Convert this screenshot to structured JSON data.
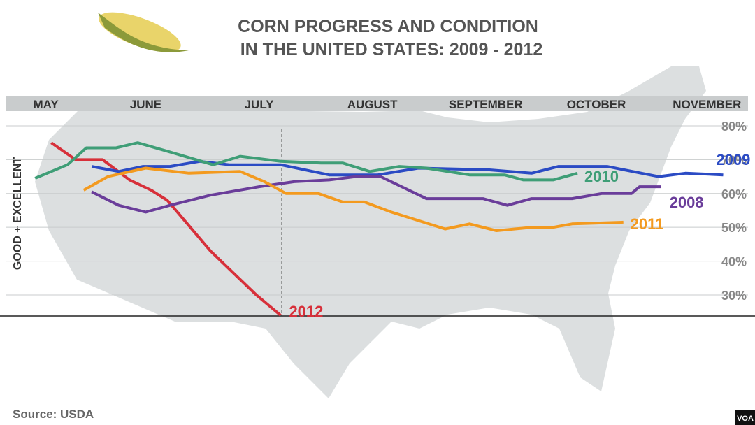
{
  "chart_data": {
    "type": "line",
    "title": "CORN PROGRESS AND CONDITION",
    "subtitle": "IN THE UNITED STATES:  2009 - 2012",
    "y_label": "GOOD + EXCELLENT",
    "source": "Source: USDA",
    "logo": "VOA",
    "xlim": [
      0,
      28
    ],
    "xticks": [
      {
        "value": 1.7,
        "label": "MAY"
      },
      {
        "value": 5.4,
        "label": "JUNE"
      },
      {
        "value": 9.6,
        "label": "JULY"
      },
      {
        "value": 13.8,
        "label": "AUGUST"
      },
      {
        "value": 18,
        "label": "SEPTEMBER"
      },
      {
        "value": 22.1,
        "label": "OCTOBER"
      },
      {
        "value": 26.2,
        "label": "NOVEMBER"
      }
    ],
    "ylim": [
      24,
      83
    ],
    "yticks": [
      {
        "value": 30,
        "label": "30%"
      },
      {
        "value": 40,
        "label": "40%"
      },
      {
        "value": 50,
        "label": "50%"
      },
      {
        "value": 60,
        "label": "60%"
      },
      {
        "value": 70,
        "label": "70%"
      },
      {
        "value": 80,
        "label": "80%"
      }
    ],
    "grid": true,
    "series": [
      {
        "name": "2012",
        "color": "#d7303a",
        "x": [
          1.9,
          2.8,
          3.8,
          4.8,
          5.6,
          6.2,
          7.8,
          9.5,
          10.4
        ],
        "values": [
          75,
          70,
          70,
          64,
          61,
          58,
          43,
          30,
          24
        ]
      },
      {
        "name": "2009",
        "color": "#2b4bc4",
        "x": [
          3.4,
          4.4,
          5.3,
          6.3,
          7.4,
          8.5,
          10.4,
          12.2,
          14,
          15.5,
          18.1,
          19.7,
          20.7,
          22.5,
          24.4,
          25.4,
          26.8
        ],
        "values": [
          68,
          66.5,
          68,
          68,
          69.5,
          68.5,
          68.5,
          65.5,
          65.5,
          67.5,
          67,
          66,
          68,
          68,
          65,
          66,
          65.5
        ]
      },
      {
        "name": "2010",
        "color": "#3f9e77",
        "x": [
          1.3,
          2.5,
          3.2,
          4.3,
          5.1,
          6.2,
          7.9,
          8.9,
          10.4,
          11.9,
          12.7,
          13.7,
          14.8,
          15.8,
          17.4,
          18.7,
          19.4,
          20.5,
          21.4
        ],
        "values": [
          64.5,
          68.5,
          73.5,
          73.5,
          75,
          72.5,
          68.5,
          71,
          69.5,
          69,
          69,
          66.5,
          68,
          67.5,
          65.5,
          65.5,
          64,
          64,
          66
        ]
      },
      {
        "name": "2008",
        "color": "#6a3d9a",
        "x": [
          3.4,
          4.4,
          5.4,
          6.3,
          7.8,
          9.6,
          10.9,
          12.2,
          13.2,
          14.1,
          15.8,
          17.9,
          18.8,
          19.7,
          21.2,
          22.3,
          23.4,
          23.7,
          24.5
        ],
        "values": [
          60.5,
          56.5,
          54.5,
          56.5,
          59.5,
          62,
          63.5,
          64,
          65,
          65,
          58.5,
          58.5,
          56.5,
          58.5,
          58.5,
          60,
          60,
          62,
          62
        ]
      },
      {
        "name": "2011",
        "color": "#f39a1f",
        "x": [
          3.1,
          4,
          5.4,
          7,
          8.9,
          9.8,
          10.6,
          11.8,
          12.7,
          13.5,
          14.5,
          16.5,
          17.4,
          18.4,
          19.7,
          20.5,
          21.2,
          23.1
        ],
        "values": [
          61,
          65,
          67.5,
          66,
          66.5,
          63.5,
          60,
          60,
          57.5,
          57.5,
          54.5,
          49.5,
          51,
          49,
          50,
          50,
          51,
          51.5
        ]
      }
    ]
  }
}
